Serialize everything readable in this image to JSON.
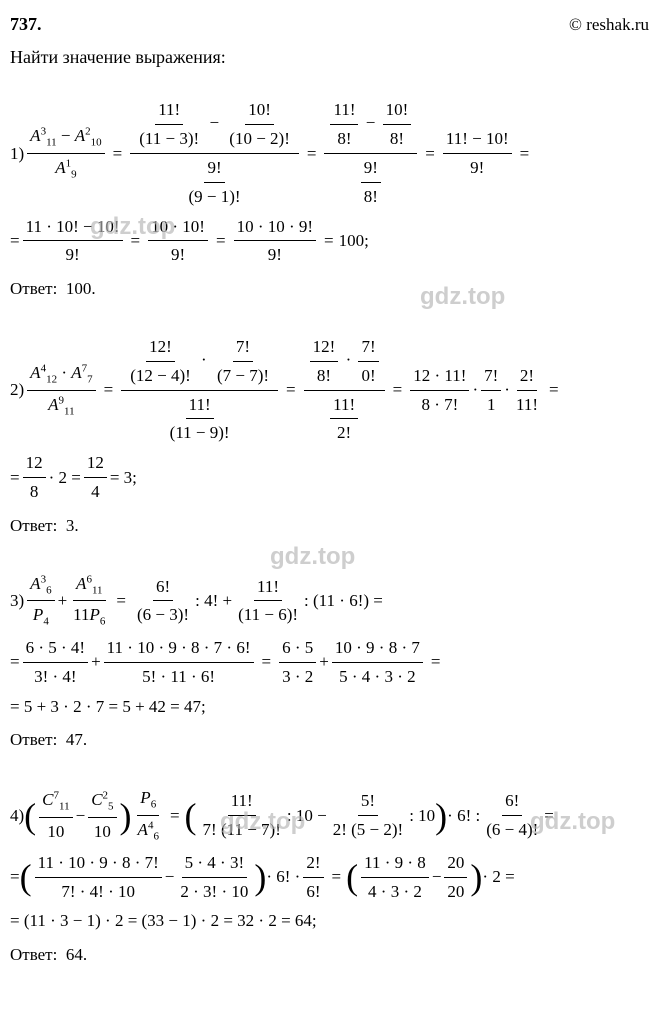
{
  "header": {
    "number": "737.",
    "copyright": "© reshak.ru"
  },
  "task": "Найти значение выражения:",
  "watermark_text": "gdz.top",
  "sol1": {
    "label": "1)",
    "left_num": "A₁₁³ − A₁₀²",
    "left_den": "A₉¹",
    "s1_num_l": "11!",
    "s1_num_l_den": "(11 − 3)!",
    "s1_num_r": "10!",
    "s1_num_r_den": "(10 − 2)!",
    "s1_den_num": "9!",
    "s1_den_den": "(9 − 1)!",
    "s2_num_l": "11!",
    "s2_num_l_den": "8!",
    "s2_num_r": "10!",
    "s2_num_r_den": "8!",
    "s2_den_num": "9!",
    "s2_den_den": "8!",
    "s3_num": "11! − 10!",
    "s3_den": "9!",
    "l2_f1_num": "11 · 10! − 10!",
    "l2_f1_den": "9!",
    "l2_f2_num": "10 · 10!",
    "l2_f2_den": "9!",
    "l2_f3_num": "10 · 10 · 9!",
    "l2_f3_den": "9!",
    "result": "100;",
    "answer_label": "Ответ:",
    "answer_value": "100."
  },
  "sol2": {
    "label": "2)",
    "left_num": "A₁₂⁴ · A₇⁷",
    "left_den": "A₁₁⁹",
    "s1_nl_num": "12!",
    "s1_nl_den": "(12 − 4)!",
    "s1_nr_num": "7!",
    "s1_nr_den": "(7 − 7)!",
    "s1_d_num": "11!",
    "s1_d_den": "(11 − 9)!",
    "s2_nl_num": "12!",
    "s2_nl_den": "8!",
    "s2_nr_num": "7!",
    "s2_nr_den": "0!",
    "s2_d_num": "11!",
    "s2_d_den": "2!",
    "s3_f1_num": "12 · 11!",
    "s3_f1_den": "8 · 7!",
    "s3_f2_num": "7!",
    "s3_f2_den": "1",
    "s3_f3_num": "2!",
    "s3_f3_den": "11!",
    "l2_f1_num": "12",
    "l2_f1_den": "8",
    "l2_mult": "· 2 =",
    "l2_f2_num": "12",
    "l2_f2_den": "4",
    "result": "= 3;",
    "answer_label": "Ответ:",
    "answer_value": "3."
  },
  "sol3": {
    "label": "3)",
    "t1_num": "A₆³",
    "t1_den": "P₄",
    "plus": "+",
    "t2_num": "A₁₁⁶",
    "t2_den": "11P₆",
    "s1_f1_num": "6!",
    "s1_f1_den": "(6 − 3)!",
    "s1_div1": ": 4! +",
    "s1_f2_num": "11!",
    "s1_f2_den": "(11 − 6)!",
    "s1_div2": ": (11 · 6!) =",
    "l2_f1_num": "6 · 5 · 4!",
    "l2_f1_den": "3! · 4!",
    "l2_f2_num": "11 · 10 · 9 · 8 · 7 · 6!",
    "l2_f2_den": "5! · 11 · 6!",
    "l2_f3_num": "6 · 5",
    "l2_f3_den": "3 · 2",
    "l2_f4_num": "10 · 9 · 8 · 7",
    "l2_f4_den": "5 · 4 · 3 · 2",
    "l3": "= 5 + 3 · 2 · 7 = 5 + 42 = 47;",
    "answer_label": "Ответ:",
    "answer_value": "47."
  },
  "sol4": {
    "label": "4)",
    "t1_num": "C₁₁⁷",
    "t1_den": "10",
    "minus": "−",
    "t2_num": "C₅²",
    "t2_den": "10",
    "t3_num": "P₆",
    "t3_den": "A₆⁴",
    "s1_f1_num": "11!",
    "s1_f1_den": "7! (11 − 7)!",
    "s1_div1": ": 10 −",
    "s1_f2_num": "5!",
    "s1_f2_den": "2! (5 − 2)!",
    "s1_div2": ": 10",
    "s1_mult": "· 6! :",
    "s1_f3_num": "6!",
    "s1_f3_den": "(6 − 4)!",
    "l2_f1_num": "11 · 10 · 9 · 8 · 7!",
    "l2_f1_den": "7! · 4! · 10",
    "l2_f2_num": "5 · 4 · 3!",
    "l2_f2_den": "2 · 3! · 10",
    "l2_mult1": "· 6! ·",
    "l2_f3_num": "2!",
    "l2_f3_den": "6!",
    "l2_f4_num": "11 · 9 · 8",
    "l2_f4_den": "4 · 3 · 2",
    "l2_f5_num": "20",
    "l2_f5_den": "20",
    "l2_mult2": "· 2 =",
    "l3": "= (11 · 3 − 1) · 2 = (33 − 1) · 2 = 32 · 2 = 64;",
    "answer_label": "Ответ:",
    "answer_value": "64."
  }
}
